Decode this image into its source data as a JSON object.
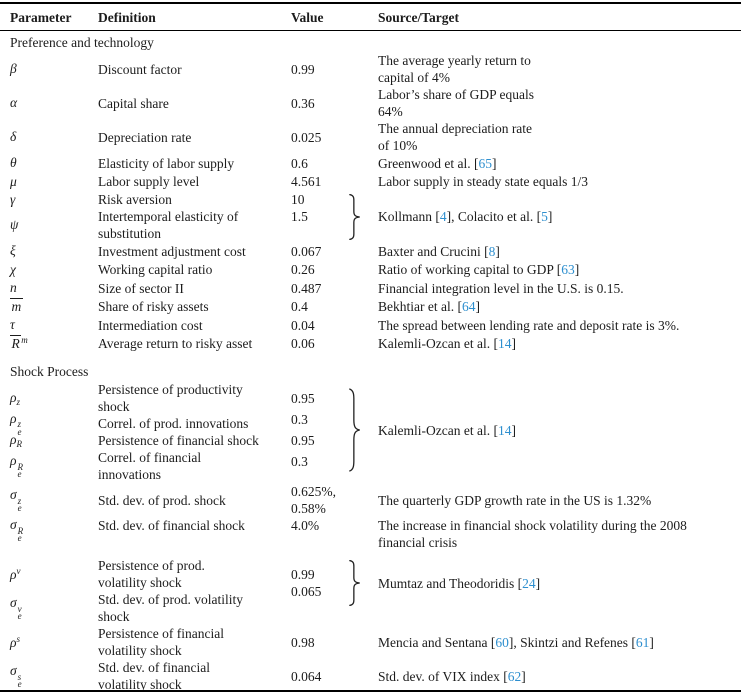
{
  "colors": {
    "citation": "#2e8fcf",
    "text": "#1c1c1c",
    "rule": "#000000",
    "background": "#ffffff"
  },
  "table": {
    "headers": [
      "Parameter",
      "Definition",
      "Value",
      "Source/Target"
    ],
    "sections": [
      {
        "title": "Preference and technology",
        "rows": [
          {
            "param": {
              "base": "β"
            },
            "definition": [
              "Discount factor"
            ],
            "value": [
              "0.99"
            ],
            "source": [
              [
                "The average yearly return to"
              ],
              [
                "capital of 4%"
              ]
            ]
          },
          {
            "param": {
              "base": "α"
            },
            "definition": [
              "Capital share"
            ],
            "value": [
              "0.36"
            ],
            "source": [
              [
                "Labor’s share of GDP equals"
              ],
              [
                "64%"
              ]
            ]
          },
          {
            "param": {
              "base": "δ"
            },
            "definition": [
              "Depreciation rate"
            ],
            "value": [
              "0.025"
            ],
            "source": [
              [
                "The annual depreciation rate"
              ],
              [
                "of 10%"
              ]
            ]
          },
          {
            "param": {
              "base": "θ"
            },
            "definition": [
              "Elasticity of labor supply"
            ],
            "value": [
              "0.6"
            ],
            "source": [
              [
                "Greenwood et al. [",
                {
                  "c": "65"
                },
                "]"
              ]
            ]
          },
          {
            "param": {
              "base": "μ"
            },
            "definition": [
              "Labor supply level"
            ],
            "value": [
              "4.561"
            ],
            "source": [
              [
                "Labor supply in steady state equals 1/3"
              ]
            ]
          },
          {
            "type": "group",
            "entries": [
              {
                "param": {
                  "base": "γ"
                },
                "definition": [
                  "Risk aversion"
                ]
              },
              {
                "param": {
                  "base": "ψ"
                },
                "definition": [
                  "Intertemporal elasticity of",
                  "substitution"
                ]
              }
            ],
            "values": [
              "10",
              "1.5"
            ],
            "layout": {
              "values_align": "top",
              "value_leading": 17,
              "brace_h": 46,
              "voffset": 0
            },
            "source": [
              [
                "Kollmann [",
                {
                  "c": "4"
                },
                "], Colacito et al. [",
                {
                  "c": "5"
                },
                "]"
              ]
            ]
          },
          {
            "param": {
              "base": "ξ"
            },
            "definition": [
              "Investment adjustment cost"
            ],
            "value": [
              "0.067"
            ],
            "source": [
              [
                "Baxter and Crucini [",
                {
                  "c": "8"
                },
                "]"
              ]
            ]
          },
          {
            "param": {
              "base": "χ"
            },
            "definition": [
              "Working capital ratio"
            ],
            "value": [
              "0.26"
            ],
            "source": [
              [
                "Ratio of working capital to GDP [",
                {
                  "c": "63"
                },
                "]"
              ]
            ]
          },
          {
            "param": {
              "base": "n"
            },
            "definition": [
              "Size of sector II"
            ],
            "value": [
              "0.487"
            ],
            "source": [
              [
                "Financial integration level in the U.S. is 0.15."
              ]
            ]
          },
          {
            "param": {
              "base": "m",
              "bar": true
            },
            "definition": [
              "Share of risky assets"
            ],
            "value": [
              "0.4"
            ],
            "source": [
              [
                "Bekhtiar et al. [",
                {
                  "c": "64"
                },
                "]"
              ]
            ]
          },
          {
            "param": {
              "base": "τ"
            },
            "definition": [
              "Intermediation cost"
            ],
            "value": [
              "0.04"
            ],
            "source": [
              [
                "The spread between lending rate and deposit rate is 3%."
              ]
            ]
          },
          {
            "param": {
              "base": "R",
              "bar": true,
              "sup": "m"
            },
            "definition": [
              "Average return to risky asset"
            ],
            "value": [
              "0.06"
            ],
            "source": [
              [
                "Kalemli-Ozcan et al. [",
                {
                  "c": "14"
                },
                "]"
              ]
            ]
          }
        ]
      },
      {
        "title": "Shock Process",
        "rows": [
          {
            "type": "group",
            "entries": [
              {
                "param": {
                  "base": "ρ",
                  "sub": "z"
                },
                "definition": [
                  "Persistence of productivity",
                  "shock"
                ]
              },
              {
                "param": {
                  "base": "ρ",
                  "sub": "e",
                  "sup": "z"
                },
                "definition": [
                  "Correl. of prod. innovations"
                ]
              },
              {
                "param": {
                  "base": "ρ",
                  "sub": "R"
                },
                "definition": [
                  "Persistence of financial shock"
                ]
              },
              {
                "param": {
                  "base": "ρ",
                  "sub": "e",
                  "sup": "R"
                },
                "definition": [
                  "Correl. of financial",
                  "innovations"
                ]
              }
            ],
            "values": [
              "0.95",
              "0.3",
              "0.95",
              "0.3"
            ],
            "layout": {
              "values_align": "center",
              "value_leading": 21,
              "brace_h": 84,
              "voffset": -2
            },
            "source": [
              [
                "Kalemli-Ozcan et al. [",
                {
                  "c": "14"
                },
                "]"
              ]
            ]
          },
          {
            "param": {
              "base": "σ",
              "sub": "e",
              "sup": "z"
            },
            "definition": [
              "Std. dev. of prod. shock"
            ],
            "value": [
              "0.625%,",
              "0.58%"
            ],
            "source": [
              [
                "The quarterly GDP growth rate in the US is 1.32%"
              ]
            ]
          },
          {
            "param": {
              "base": "σ",
              "sub": "e",
              "sup": "R"
            },
            "definition": [
              "Std. dev. of financial shock"
            ],
            "value": [
              "4.0%"
            ],
            "align": "top",
            "source": [
              [
                "The increase in financial shock volatility during the 2008"
              ],
              [
                "financial crisis"
              ]
            ]
          },
          {
            "type": "group",
            "gap_before": true,
            "entries": [
              {
                "param": {
                  "base": "ρ",
                  "sup": "v"
                },
                "definition": [
                  "Persistence of prod.",
                  "volatility shock"
                ]
              },
              {
                "param": {
                  "base": "σ",
                  "sub": "e",
                  "sup": "v"
                },
                "definition": [
                  "Std. dev. of prod. volatility",
                  "shock"
                ]
              }
            ],
            "values": [
              "0.99",
              "0.065"
            ],
            "layout": {
              "values_align": "center",
              "value_leading": 17,
              "brace_h": 46,
              "voffset": -8
            },
            "source": [
              [
                "Mumtaz and Theodoridis [",
                {
                  "c": "24"
                },
                "]"
              ]
            ]
          },
          {
            "param": {
              "base": "ρ",
              "sup": "s"
            },
            "definition": [
              "Persistence of financial",
              "volatility shock"
            ],
            "value": [
              "0.98"
            ],
            "source": [
              [
                "Mencia and Sentana [",
                {
                  "c": "60"
                },
                "], Skintzi and Refenes [",
                {
                  "c": "61"
                },
                "]"
              ]
            ]
          },
          {
            "param": {
              "base": "σ",
              "sub": "e",
              "sup": "s"
            },
            "definition": [
              "Std. dev. of financial",
              "volatility shock"
            ],
            "value": [
              "0.064"
            ],
            "source": [
              [
                "Std. dev. of VIX index [",
                {
                  "c": "62"
                },
                "]"
              ]
            ]
          }
        ]
      }
    ]
  }
}
